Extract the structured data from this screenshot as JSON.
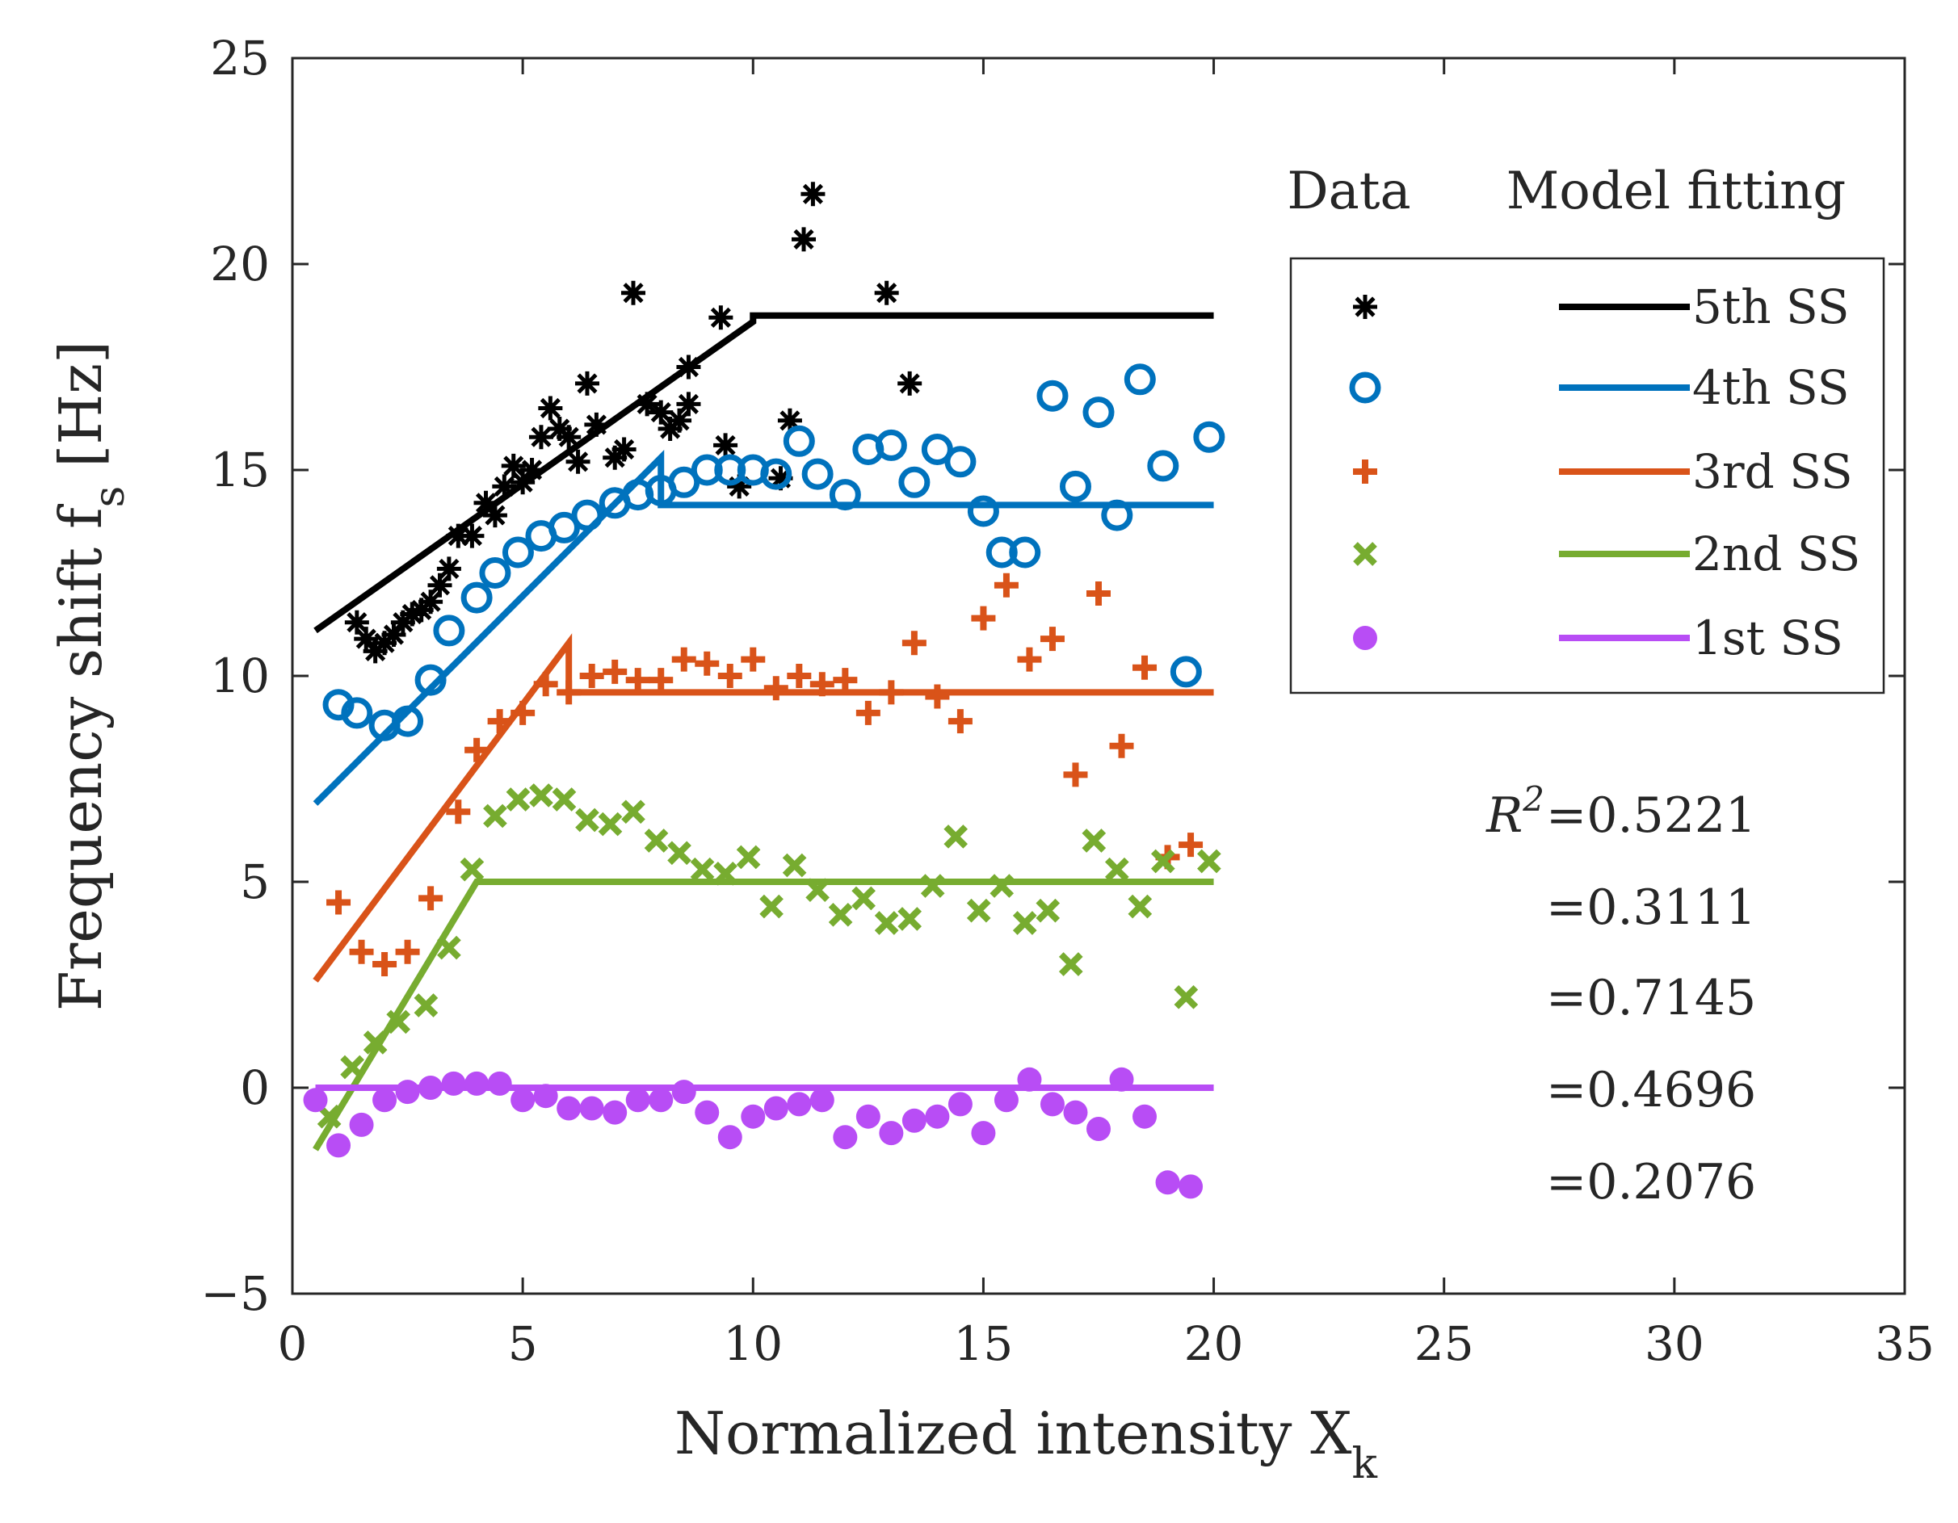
{
  "chart_data": {
    "type": "scatter",
    "title": "",
    "xlabel": "Normalized intensity X",
    "xlabel_sub": "k",
    "ylabel": "Frequency shift f",
    "ylabel_sub": "s",
    "ylabel_unit": " [Hz]",
    "xlim": [
      0,
      35
    ],
    "ylim": [
      -5,
      25
    ],
    "xticks": [
      0,
      5,
      10,
      15,
      20,
      25,
      30,
      35
    ],
    "yticks": [
      -5,
      0,
      5,
      10,
      15,
      20,
      25
    ],
    "legend_headers": {
      "data": "Data",
      "model": "Model fitting"
    },
    "series": [
      {
        "name": "5th SS",
        "color": "#000000",
        "marker": "asterisk",
        "r2": "=0.5221",
        "fit_x": [
          0.5,
          10,
          10,
          20
        ],
        "fit_y": [
          11.1,
          18.6,
          18.75,
          18.75
        ],
        "points": [
          [
            1.4,
            11.3
          ],
          [
            1.6,
            10.9
          ],
          [
            1.8,
            10.6
          ],
          [
            2.0,
            10.8
          ],
          [
            2.2,
            11.0
          ],
          [
            2.4,
            11.3
          ],
          [
            2.6,
            11.5
          ],
          [
            2.8,
            11.6
          ],
          [
            3.0,
            11.8
          ],
          [
            3.2,
            12.2
          ],
          [
            3.4,
            12.6
          ],
          [
            3.6,
            13.4
          ],
          [
            3.9,
            13.4
          ],
          [
            4.2,
            14.2
          ],
          [
            4.4,
            13.9
          ],
          [
            4.6,
            14.6
          ],
          [
            4.8,
            15.1
          ],
          [
            5.0,
            14.7
          ],
          [
            5.2,
            15.0
          ],
          [
            5.4,
            15.8
          ],
          [
            5.6,
            16.5
          ],
          [
            5.8,
            16.0
          ],
          [
            6.0,
            15.8
          ],
          [
            6.2,
            15.2
          ],
          [
            6.4,
            17.1
          ],
          [
            6.6,
            16.1
          ],
          [
            7.0,
            15.3
          ],
          [
            7.2,
            15.5
          ],
          [
            7.4,
            19.3
          ],
          [
            7.7,
            16.6
          ],
          [
            8.0,
            16.4
          ],
          [
            8.2,
            16.0
          ],
          [
            8.4,
            16.2
          ],
          [
            8.6,
            16.6
          ],
          [
            8.6,
            17.5
          ],
          [
            9.3,
            18.7
          ],
          [
            9.4,
            15.6
          ],
          [
            9.7,
            14.6
          ],
          [
            10.6,
            14.8
          ],
          [
            10.8,
            16.2
          ],
          [
            11.1,
            20.6
          ],
          [
            11.3,
            21.7
          ],
          [
            12.9,
            19.3
          ],
          [
            13.4,
            17.1
          ]
        ]
      },
      {
        "name": "4th SS",
        "color": "#0072BD",
        "marker": "circle",
        "r2": "=0.3111",
        "fit_x": [
          0.5,
          8,
          8,
          20
        ],
        "fit_y": [
          6.9,
          15.3,
          14.15,
          14.15
        ],
        "points": [
          [
            1.0,
            9.3
          ],
          [
            1.4,
            9.1
          ],
          [
            2.0,
            8.8
          ],
          [
            2.5,
            8.9
          ],
          [
            3.0,
            9.9
          ],
          [
            3.4,
            11.1
          ],
          [
            4.0,
            11.9
          ],
          [
            4.4,
            12.5
          ],
          [
            4.9,
            13.0
          ],
          [
            5.4,
            13.4
          ],
          [
            5.9,
            13.6
          ],
          [
            6.4,
            13.9
          ],
          [
            7.0,
            14.2
          ],
          [
            7.5,
            14.4
          ],
          [
            8.0,
            14.5
          ],
          [
            8.5,
            14.7
          ],
          [
            9.0,
            15.0
          ],
          [
            9.5,
            15.0
          ],
          [
            10.0,
            15.0
          ],
          [
            10.5,
            14.9
          ],
          [
            11.0,
            15.7
          ],
          [
            11.4,
            14.9
          ],
          [
            12.0,
            14.4
          ],
          [
            12.5,
            15.5
          ],
          [
            13.0,
            15.6
          ],
          [
            13.5,
            14.7
          ],
          [
            14.0,
            15.5
          ],
          [
            14.5,
            15.2
          ],
          [
            15.0,
            14.0
          ],
          [
            15.4,
            13.0
          ],
          [
            15.9,
            13.0
          ],
          [
            16.5,
            16.8
          ],
          [
            17.0,
            14.6
          ],
          [
            17.5,
            16.4
          ],
          [
            17.9,
            13.9
          ],
          [
            18.4,
            17.2
          ],
          [
            18.9,
            15.1
          ],
          [
            19.4,
            10.1
          ],
          [
            19.9,
            15.8
          ]
        ]
      },
      {
        "name": "3rd SS",
        "color": "#D95319",
        "marker": "plus",
        "r2": "=0.7145",
        "fit_x": [
          0.5,
          6,
          6,
          20
        ],
        "fit_y": [
          2.6,
          10.8,
          9.6,
          9.6
        ],
        "points": [
          [
            1.0,
            4.5
          ],
          [
            1.5,
            3.3
          ],
          [
            2.0,
            3.0
          ],
          [
            2.5,
            3.3
          ],
          [
            3.0,
            4.6
          ],
          [
            3.6,
            6.7
          ],
          [
            4.0,
            8.2
          ],
          [
            4.5,
            8.9
          ],
          [
            5.0,
            9.1
          ],
          [
            5.5,
            9.8
          ],
          [
            6.0,
            9.6
          ],
          [
            6.5,
            10.0
          ],
          [
            7.0,
            10.1
          ],
          [
            7.5,
            9.9
          ],
          [
            8.0,
            9.9
          ],
          [
            8.5,
            10.4
          ],
          [
            9.0,
            10.3
          ],
          [
            9.5,
            10.0
          ],
          [
            10.0,
            10.4
          ],
          [
            10.5,
            9.7
          ],
          [
            11.0,
            10.0
          ],
          [
            11.5,
            9.8
          ],
          [
            12.0,
            9.9
          ],
          [
            12.5,
            9.1
          ],
          [
            13.0,
            9.6
          ],
          [
            13.5,
            10.8
          ],
          [
            14.0,
            9.5
          ],
          [
            14.5,
            8.9
          ],
          [
            15.0,
            11.4
          ],
          [
            15.5,
            12.2
          ],
          [
            16.0,
            10.4
          ],
          [
            16.5,
            10.9
          ],
          [
            17.0,
            7.6
          ],
          [
            17.5,
            12.0
          ],
          [
            18.0,
            8.3
          ],
          [
            18.5,
            10.2
          ],
          [
            19.0,
            5.6
          ],
          [
            19.5,
            5.9
          ]
        ]
      },
      {
        "name": "2nd SS",
        "color": "#77AC30",
        "marker": "cross",
        "r2": "=0.4696",
        "fit_x": [
          0.5,
          4,
          4,
          20
        ],
        "fit_y": [
          -1.5,
          5.0,
          5.0,
          5.0
        ],
        "points": [
          [
            0.8,
            -0.7
          ],
          [
            1.3,
            0.5
          ],
          [
            1.8,
            1.1
          ],
          [
            2.3,
            1.6
          ],
          [
            2.9,
            2.0
          ],
          [
            3.4,
            3.4
          ],
          [
            3.9,
            5.3
          ],
          [
            4.4,
            6.6
          ],
          [
            4.9,
            7.0
          ],
          [
            5.4,
            7.1
          ],
          [
            5.9,
            7.0
          ],
          [
            6.4,
            6.5
          ],
          [
            6.9,
            6.4
          ],
          [
            7.4,
            6.7
          ],
          [
            7.9,
            6.0
          ],
          [
            8.4,
            5.7
          ],
          [
            8.9,
            5.3
          ],
          [
            9.4,
            5.2
          ],
          [
            9.9,
            5.6
          ],
          [
            10.4,
            4.4
          ],
          [
            10.9,
            5.4
          ],
          [
            11.4,
            4.8
          ],
          [
            11.9,
            4.2
          ],
          [
            12.4,
            4.6
          ],
          [
            12.9,
            4.0
          ],
          [
            13.4,
            4.1
          ],
          [
            13.9,
            4.9
          ],
          [
            14.4,
            6.1
          ],
          [
            14.9,
            4.3
          ],
          [
            15.4,
            4.9
          ],
          [
            15.9,
            4.0
          ],
          [
            16.4,
            4.3
          ],
          [
            16.9,
            3.0
          ],
          [
            17.4,
            6.0
          ],
          [
            17.9,
            5.3
          ],
          [
            18.4,
            4.4
          ],
          [
            18.9,
            5.5
          ],
          [
            19.4,
            2.2
          ],
          [
            19.9,
            5.5
          ]
        ]
      },
      {
        "name": "1st SS",
        "color": "#B84DF5",
        "marker": "dot",
        "r2": "=0.2076",
        "fit_x": [
          0.5,
          20
        ],
        "fit_y": [
          0.0,
          0.0
        ],
        "points": [
          [
            0.5,
            -0.3
          ],
          [
            1.0,
            -1.4
          ],
          [
            1.5,
            -0.9
          ],
          [
            2.0,
            -0.3
          ],
          [
            2.5,
            -0.1
          ],
          [
            3.0,
            0.0
          ],
          [
            3.5,
            0.1
          ],
          [
            4.0,
            0.1
          ],
          [
            4.5,
            0.1
          ],
          [
            5.0,
            -0.3
          ],
          [
            5.5,
            -0.2
          ],
          [
            6.0,
            -0.5
          ],
          [
            6.5,
            -0.5
          ],
          [
            7.0,
            -0.6
          ],
          [
            7.5,
            -0.3
          ],
          [
            8.0,
            -0.3
          ],
          [
            8.5,
            -0.1
          ],
          [
            9.0,
            -0.6
          ],
          [
            9.5,
            -1.2
          ],
          [
            10.0,
            -0.7
          ],
          [
            10.5,
            -0.5
          ],
          [
            11.0,
            -0.4
          ],
          [
            11.5,
            -0.3
          ],
          [
            12.0,
            -1.2
          ],
          [
            12.5,
            -0.7
          ],
          [
            13.0,
            -1.1
          ],
          [
            13.5,
            -0.8
          ],
          [
            14.0,
            -0.7
          ],
          [
            14.5,
            -0.4
          ],
          [
            15.0,
            -1.1
          ],
          [
            15.5,
            -0.3
          ],
          [
            16.0,
            0.2
          ],
          [
            16.5,
            -0.4
          ],
          [
            17.0,
            -0.6
          ],
          [
            17.5,
            -1.0
          ],
          [
            18.0,
            0.2
          ],
          [
            18.5,
            -0.7
          ],
          [
            19.0,
            -2.3
          ],
          [
            19.5,
            -2.4
          ]
        ]
      }
    ],
    "r2_label": "R",
    "r2_sup": "2"
  }
}
